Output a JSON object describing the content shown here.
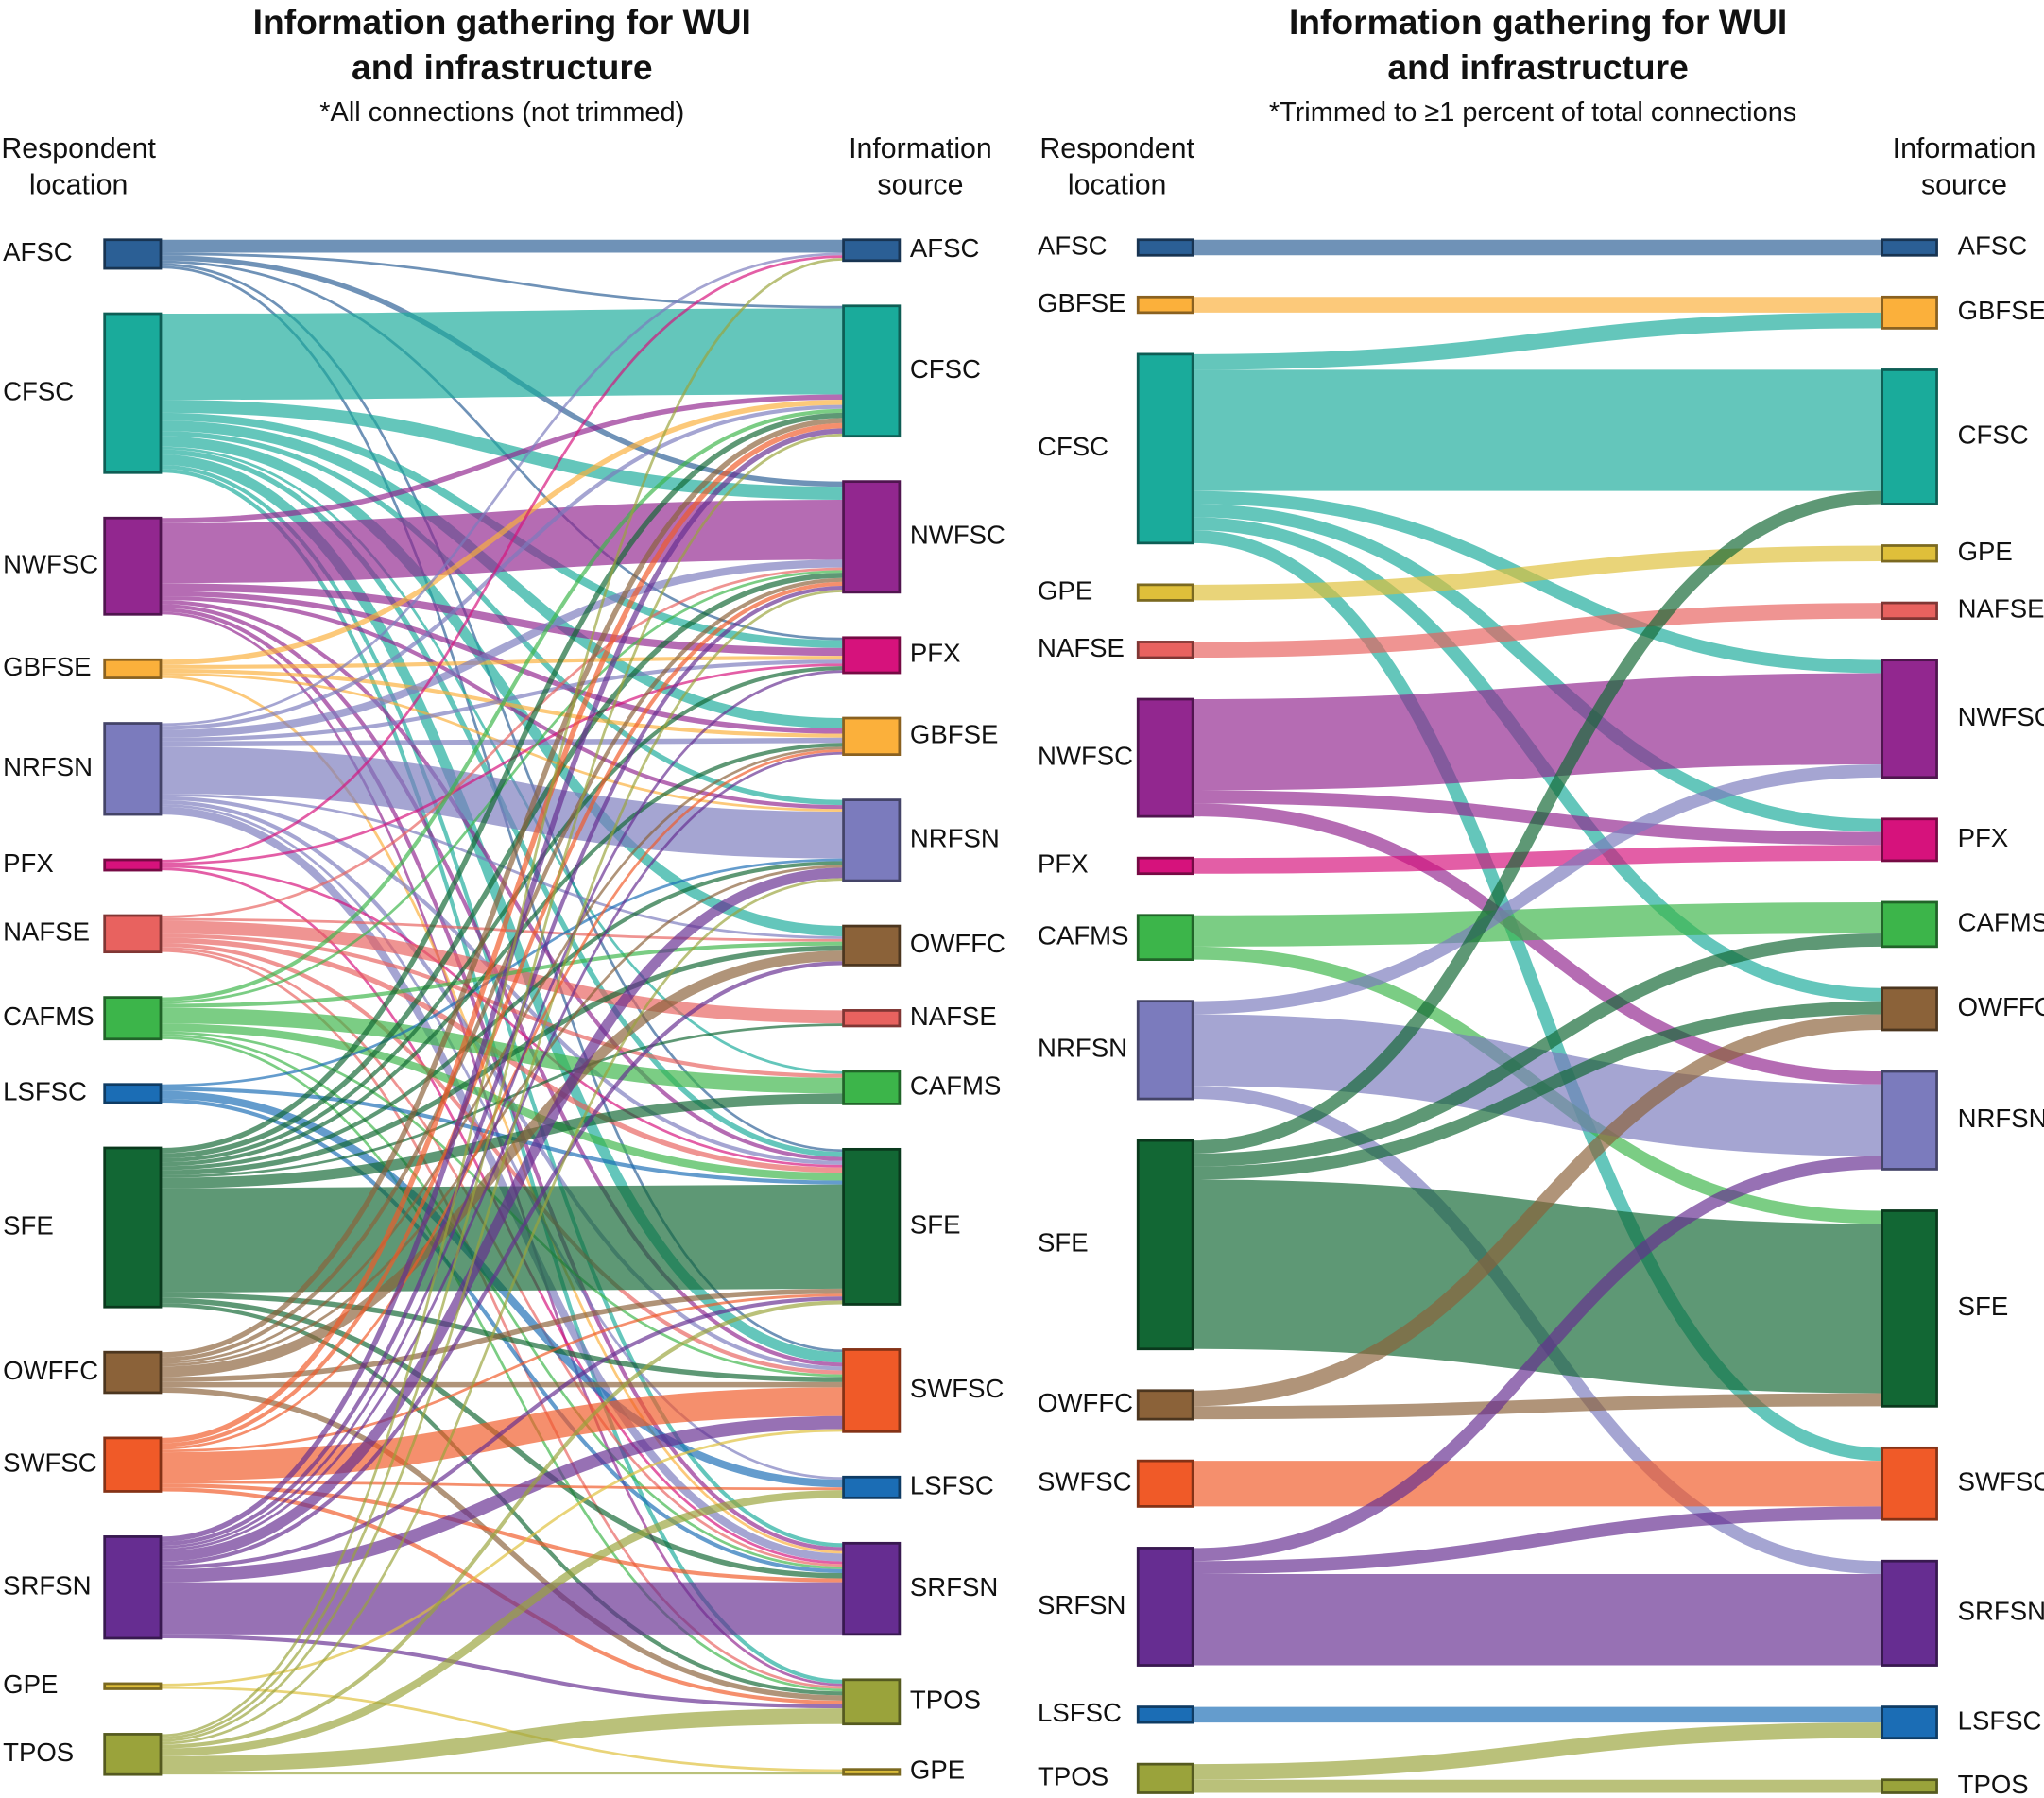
{
  "colors": {
    "AFSC": "#2b5f95",
    "CFSC": "#1aab9b",
    "NWFSC": "#92278f",
    "GBFSE": "#fbb03b",
    "NRFSN": "#7b7bbd",
    "PFX": "#d6127c",
    "NAFSE": "#e8625f",
    "CAFMS": "#3cb54a",
    "LSFSC": "#1b6db5",
    "SFE": "#126734",
    "OWFFC": "#8b6239",
    "SWFSC": "#f05a28",
    "SRFSN": "#662d91",
    "GPE": "#dfbf3a",
    "TPOS": "#9aa33b"
  },
  "panels": [
    {
      "title_line1": "Information gathering for WUI",
      "title_line2": "and infrastructure",
      "subtitle": "*All connections (not trimmed)",
      "left_header_1": "Respondent",
      "left_header_2": "location",
      "right_header_1": "Information",
      "right_header_2": "source",
      "sources": [
        "AFSC",
        "CFSC",
        "NWFSC",
        "GBFSE",
        "NRFSN",
        "PFX",
        "NAFSE",
        "CAFMS",
        "LSFSC",
        "SFE",
        "OWFFC",
        "SWFSC",
        "SRFSN",
        "GPE",
        "TPOS"
      ],
      "targets": [
        "AFSC",
        "CFSC",
        "NWFSC",
        "PFX",
        "GBFSE",
        "NRFSN",
        "OWFFC",
        "NAFSE",
        "CAFMS",
        "SFE",
        "SWFSC",
        "LSFSC",
        "SRFSN",
        "TPOS",
        "GPE"
      ],
      "links": [
        [
          "AFSC",
          "AFSC",
          10
        ],
        [
          "AFSC",
          "CFSC",
          2
        ],
        [
          "AFSC",
          "NWFSC",
          4
        ],
        [
          "AFSC",
          "PFX",
          2
        ],
        [
          "AFSC",
          "SFE",
          2
        ],
        [
          "AFSC",
          "SWFSC",
          2
        ],
        [
          "CFSC",
          "CFSC",
          66
        ],
        [
          "CFSC",
          "NWFSC",
          10
        ],
        [
          "CFSC",
          "PFX",
          6
        ],
        [
          "CFSC",
          "GBFSE",
          8
        ],
        [
          "CFSC",
          "NRFSN",
          4
        ],
        [
          "CFSC",
          "OWFFC",
          8
        ],
        [
          "CFSC",
          "CAFMS",
          2
        ],
        [
          "CFSC",
          "SFE",
          4
        ],
        [
          "CFSC",
          "SWFSC",
          8
        ],
        [
          "CFSC",
          "SRFSN",
          3
        ],
        [
          "CFSC",
          "TPOS",
          3
        ],
        [
          "NWFSC",
          "CFSC",
          4
        ],
        [
          "NWFSC",
          "NWFSC",
          46
        ],
        [
          "NWFSC",
          "PFX",
          6
        ],
        [
          "NWFSC",
          "GBFSE",
          4
        ],
        [
          "NWFSC",
          "NRFSN",
          3
        ],
        [
          "NWFSC",
          "SFE",
          3
        ],
        [
          "NWFSC",
          "SWFSC",
          3
        ],
        [
          "NWFSC",
          "SRFSN",
          3
        ],
        [
          "NWFSC",
          "TPOS",
          2
        ],
        [
          "GBFSE",
          "CFSC",
          4
        ],
        [
          "GBFSE",
          "PFX",
          3
        ],
        [
          "GBFSE",
          "GBFSE",
          3
        ],
        [
          "GBFSE",
          "NRFSN",
          2
        ],
        [
          "GBFSE",
          "SRFSN",
          2
        ],
        [
          "NRFSN",
          "AFSC",
          2
        ],
        [
          "NRFSN",
          "CFSC",
          3
        ],
        [
          "NRFSN",
          "NWFSC",
          6
        ],
        [
          "NRFSN",
          "PFX",
          3
        ],
        [
          "NRFSN",
          "GBFSE",
          4
        ],
        [
          "NRFSN",
          "NRFSN",
          36
        ],
        [
          "NRFSN",
          "OWFFC",
          2
        ],
        [
          "NRFSN",
          "SFE",
          3
        ],
        [
          "NRFSN",
          "SWFSC",
          3
        ],
        [
          "NRFSN",
          "LSFSC",
          2
        ],
        [
          "NRFSN",
          "SRFSN",
          6
        ],
        [
          "PFX",
          "AFSC",
          2
        ],
        [
          "PFX",
          "PFX",
          2
        ],
        [
          "PFX",
          "SFE",
          2
        ],
        [
          "PFX",
          "SRFSN",
          2
        ],
        [
          "NAFSE",
          "NWFSC",
          2
        ],
        [
          "NAFSE",
          "OWFFC",
          2
        ],
        [
          "NAFSE",
          "NAFSE",
          10
        ],
        [
          "NAFSE",
          "CAFMS",
          3
        ],
        [
          "NAFSE",
          "SFE",
          4
        ],
        [
          "NAFSE",
          "SWFSC",
          3
        ],
        [
          "NAFSE",
          "SRFSN",
          2
        ],
        [
          "NAFSE",
          "TPOS",
          2
        ],
        [
          "CAFMS",
          "CFSC",
          3
        ],
        [
          "CAFMS",
          "NWFSC",
          2
        ],
        [
          "CAFMS",
          "OWFFC",
          3
        ],
        [
          "CAFMS",
          "CAFMS",
          12
        ],
        [
          "CAFMS",
          "SFE",
          6
        ],
        [
          "CAFMS",
          "SWFSC",
          2
        ],
        [
          "CAFMS",
          "SRFSN",
          2
        ],
        [
          "CAFMS",
          "TPOS",
          2
        ],
        [
          "LSFSC",
          "NRFSN",
          2
        ],
        [
          "LSFSC",
          "SFE",
          3
        ],
        [
          "LSFSC",
          "LSFSC",
          6
        ],
        [
          "LSFSC",
          "SRFSN",
          3
        ],
        [
          "SFE",
          "CFSC",
          4
        ],
        [
          "SFE",
          "NWFSC",
          4
        ],
        [
          "SFE",
          "PFX",
          3
        ],
        [
          "SFE",
          "GBFSE",
          3
        ],
        [
          "SFE",
          "NRFSN",
          3
        ],
        [
          "SFE",
          "OWFFC",
          4
        ],
        [
          "SFE",
          "NAFSE",
          2
        ],
        [
          "SFE",
          "CAFMS",
          8
        ],
        [
          "SFE",
          "SFE",
          80
        ],
        [
          "SFE",
          "SWFSC",
          4
        ],
        [
          "SFE",
          "SRFSN",
          4
        ],
        [
          "SFE",
          "TPOS",
          3
        ],
        [
          "OWFFC",
          "CFSC",
          4
        ],
        [
          "OWFFC",
          "NWFSC",
          3
        ],
        [
          "OWFFC",
          "GBFSE",
          2
        ],
        [
          "OWFFC",
          "NRFSN",
          2
        ],
        [
          "OWFFC",
          "OWFFC",
          8
        ],
        [
          "OWFFC",
          "SFE",
          4
        ],
        [
          "OWFFC",
          "SWFSC",
          4
        ],
        [
          "OWFFC",
          "TPOS",
          4
        ],
        [
          "SWFSC",
          "CFSC",
          4
        ],
        [
          "SWFSC",
          "NWFSC",
          3
        ],
        [
          "SWFSC",
          "GBFSE",
          2
        ],
        [
          "SWFSC",
          "SFE",
          2
        ],
        [
          "SWFSC",
          "SWFSC",
          22
        ],
        [
          "SWFSC",
          "LSFSC",
          2
        ],
        [
          "SWFSC",
          "SRFSN",
          3
        ],
        [
          "SWFSC",
          "TPOS",
          3
        ],
        [
          "SRFSN",
          "CFSC",
          4
        ],
        [
          "SRFSN",
          "NWFSC",
          3
        ],
        [
          "SRFSN",
          "PFX",
          2
        ],
        [
          "SRFSN",
          "GBFSE",
          2
        ],
        [
          "SRFSN",
          "NRFSN",
          8
        ],
        [
          "SRFSN",
          "OWFFC",
          3
        ],
        [
          "SRFSN",
          "SFE",
          3
        ],
        [
          "SRFSN",
          "SWFSC",
          10
        ],
        [
          "SRFSN",
          "SRFSN",
          40
        ],
        [
          "SRFSN",
          "TPOS",
          3
        ],
        [
          "GPE",
          "SWFSC",
          2
        ],
        [
          "GPE",
          "GPE",
          2
        ],
        [
          "TPOS",
          "AFSC",
          2
        ],
        [
          "TPOS",
          "CFSC",
          2
        ],
        [
          "TPOS",
          "NWFSC",
          2
        ],
        [
          "TPOS",
          "NRFSN",
          2
        ],
        [
          "TPOS",
          "SFE",
          3
        ],
        [
          "TPOS",
          "LSFSC",
          6
        ],
        [
          "TPOS",
          "TPOS",
          12
        ],
        [
          "TPOS",
          "GPE",
          2
        ]
      ]
    },
    {
      "title_line1": "Information gathering for  WUI",
      "title_line2": "and infrastructure",
      "subtitle": "*Trimmed to ≥1 percent of total connections",
      "left_header_1": "Respondent",
      "left_header_2": "location",
      "right_header_1": "Information",
      "right_header_2": "source",
      "sources": [
        "AFSC",
        "GBFSE",
        "CFSC",
        "GPE",
        "NAFSE",
        "NWFSC",
        "PFX",
        "CAFMS",
        "NRFSN",
        "SFE",
        "OWFFC",
        "SWFSC",
        "SRFSN",
        "LSFSC",
        "TPOS"
      ],
      "targets": [
        "AFSC",
        "GBFSE",
        "CFSC",
        "GPE",
        "NAFSE",
        "NWFSC",
        "PFX",
        "CAFMS",
        "OWFFC",
        "NRFSN",
        "SFE",
        "SWFSC",
        "SRFSN",
        "LSFSC",
        "TPOS"
      ],
      "links": [
        [
          "AFSC",
          "AFSC",
          12
        ],
        [
          "GBFSE",
          "GBFSE",
          12
        ],
        [
          "CFSC",
          "GBFSE",
          12
        ],
        [
          "CFSC",
          "CFSC",
          93
        ],
        [
          "CFSC",
          "NWFSC",
          10
        ],
        [
          "CFSC",
          "PFX",
          10
        ],
        [
          "CFSC",
          "OWFFC",
          10
        ],
        [
          "CFSC",
          "SWFSC",
          10
        ],
        [
          "GPE",
          "GPE",
          12
        ],
        [
          "NAFSE",
          "NAFSE",
          12
        ],
        [
          "NWFSC",
          "NWFSC",
          70
        ],
        [
          "NWFSC",
          "PFX",
          10
        ],
        [
          "NWFSC",
          "NRFSN",
          10
        ],
        [
          "PFX",
          "PFX",
          12
        ],
        [
          "CAFMS",
          "CAFMS",
          24
        ],
        [
          "CAFMS",
          "SFE",
          10
        ],
        [
          "NRFSN",
          "NWFSC",
          10
        ],
        [
          "NRFSN",
          "NRFSN",
          55
        ],
        [
          "NRFSN",
          "SRFSN",
          10
        ],
        [
          "SFE",
          "CFSC",
          10
        ],
        [
          "SFE",
          "CAFMS",
          10
        ],
        [
          "SFE",
          "OWFFC",
          10
        ],
        [
          "SFE",
          "SFE",
          130
        ],
        [
          "OWFFC",
          "OWFFC",
          12
        ],
        [
          "OWFFC",
          "SFE",
          10
        ],
        [
          "SWFSC",
          "SWFSC",
          35
        ],
        [
          "SRFSN",
          "NRFSN",
          10
        ],
        [
          "SRFSN",
          "SWFSC",
          10
        ],
        [
          "SRFSN",
          "SRFSN",
          70
        ],
        [
          "LSFSC",
          "LSFSC",
          12
        ],
        [
          "TPOS",
          "LSFSC",
          12
        ],
        [
          "TPOS",
          "TPOS",
          10
        ]
      ]
    }
  ]
}
